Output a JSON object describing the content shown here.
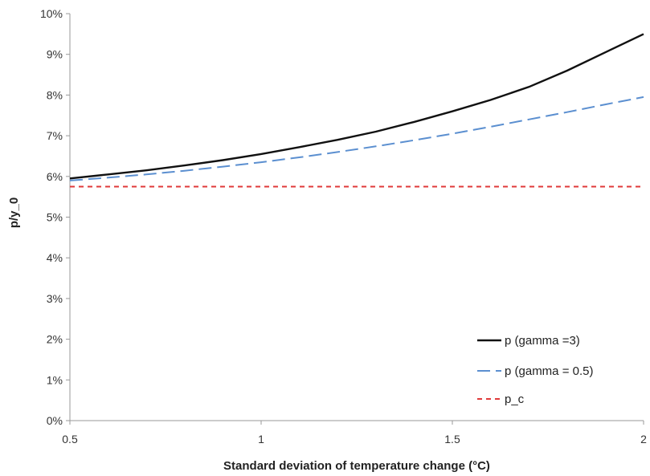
{
  "chart_data": {
    "type": "line",
    "title": "",
    "xlabel": "Standard deviation of temperature change (°C)",
    "ylabel": "p/y_0",
    "xlim": [
      0.5,
      2
    ],
    "ylim": [
      0,
      0.1
    ],
    "x_ticks": [
      0.5,
      1,
      1.5,
      2
    ],
    "x_tick_labels": [
      "0.5",
      "1",
      "1.5",
      "2"
    ],
    "y_ticks": [
      0,
      0.01,
      0.02,
      0.03,
      0.04,
      0.05,
      0.06,
      0.07,
      0.08,
      0.09,
      0.1
    ],
    "y_tick_labels": [
      "0%",
      "1%",
      "2%",
      "3%",
      "4%",
      "5%",
      "6%",
      "7%",
      "8%",
      "9%",
      "10%"
    ],
    "grid": false,
    "legend_position": "bottom-right",
    "x": [
      0.5,
      0.6,
      0.7,
      0.8,
      0.9,
      1.0,
      1.1,
      1.2,
      1.3,
      1.4,
      1.5,
      1.6,
      1.7,
      1.8,
      1.9,
      2.0
    ],
    "series": [
      {
        "name": "p (gamma =3)",
        "style": "solid",
        "color": "#111111",
        "values": [
          0.0595,
          0.0605,
          0.0615,
          0.0627,
          0.064,
          0.0655,
          0.0672,
          0.069,
          0.071,
          0.0734,
          0.076,
          0.0788,
          0.082,
          0.086,
          0.0905,
          0.095
        ]
      },
      {
        "name": "p (gamma = 0.5)",
        "style": "dashed",
        "color": "#5b8fd0",
        "values": [
          0.059,
          0.0597,
          0.0605,
          0.0614,
          0.0624,
          0.0635,
          0.0647,
          0.066,
          0.0674,
          0.0689,
          0.0705,
          0.0722,
          0.074,
          0.0758,
          0.0777,
          0.0795
        ]
      },
      {
        "name": "p_c",
        "style": "dotted",
        "color": "#e03a3a",
        "values": [
          0.0575,
          0.0575,
          0.0575,
          0.0575,
          0.0575,
          0.0575,
          0.0575,
          0.0575,
          0.0575,
          0.0575,
          0.0575,
          0.0575,
          0.0575,
          0.0575,
          0.0575,
          0.0575
        ]
      }
    ]
  }
}
